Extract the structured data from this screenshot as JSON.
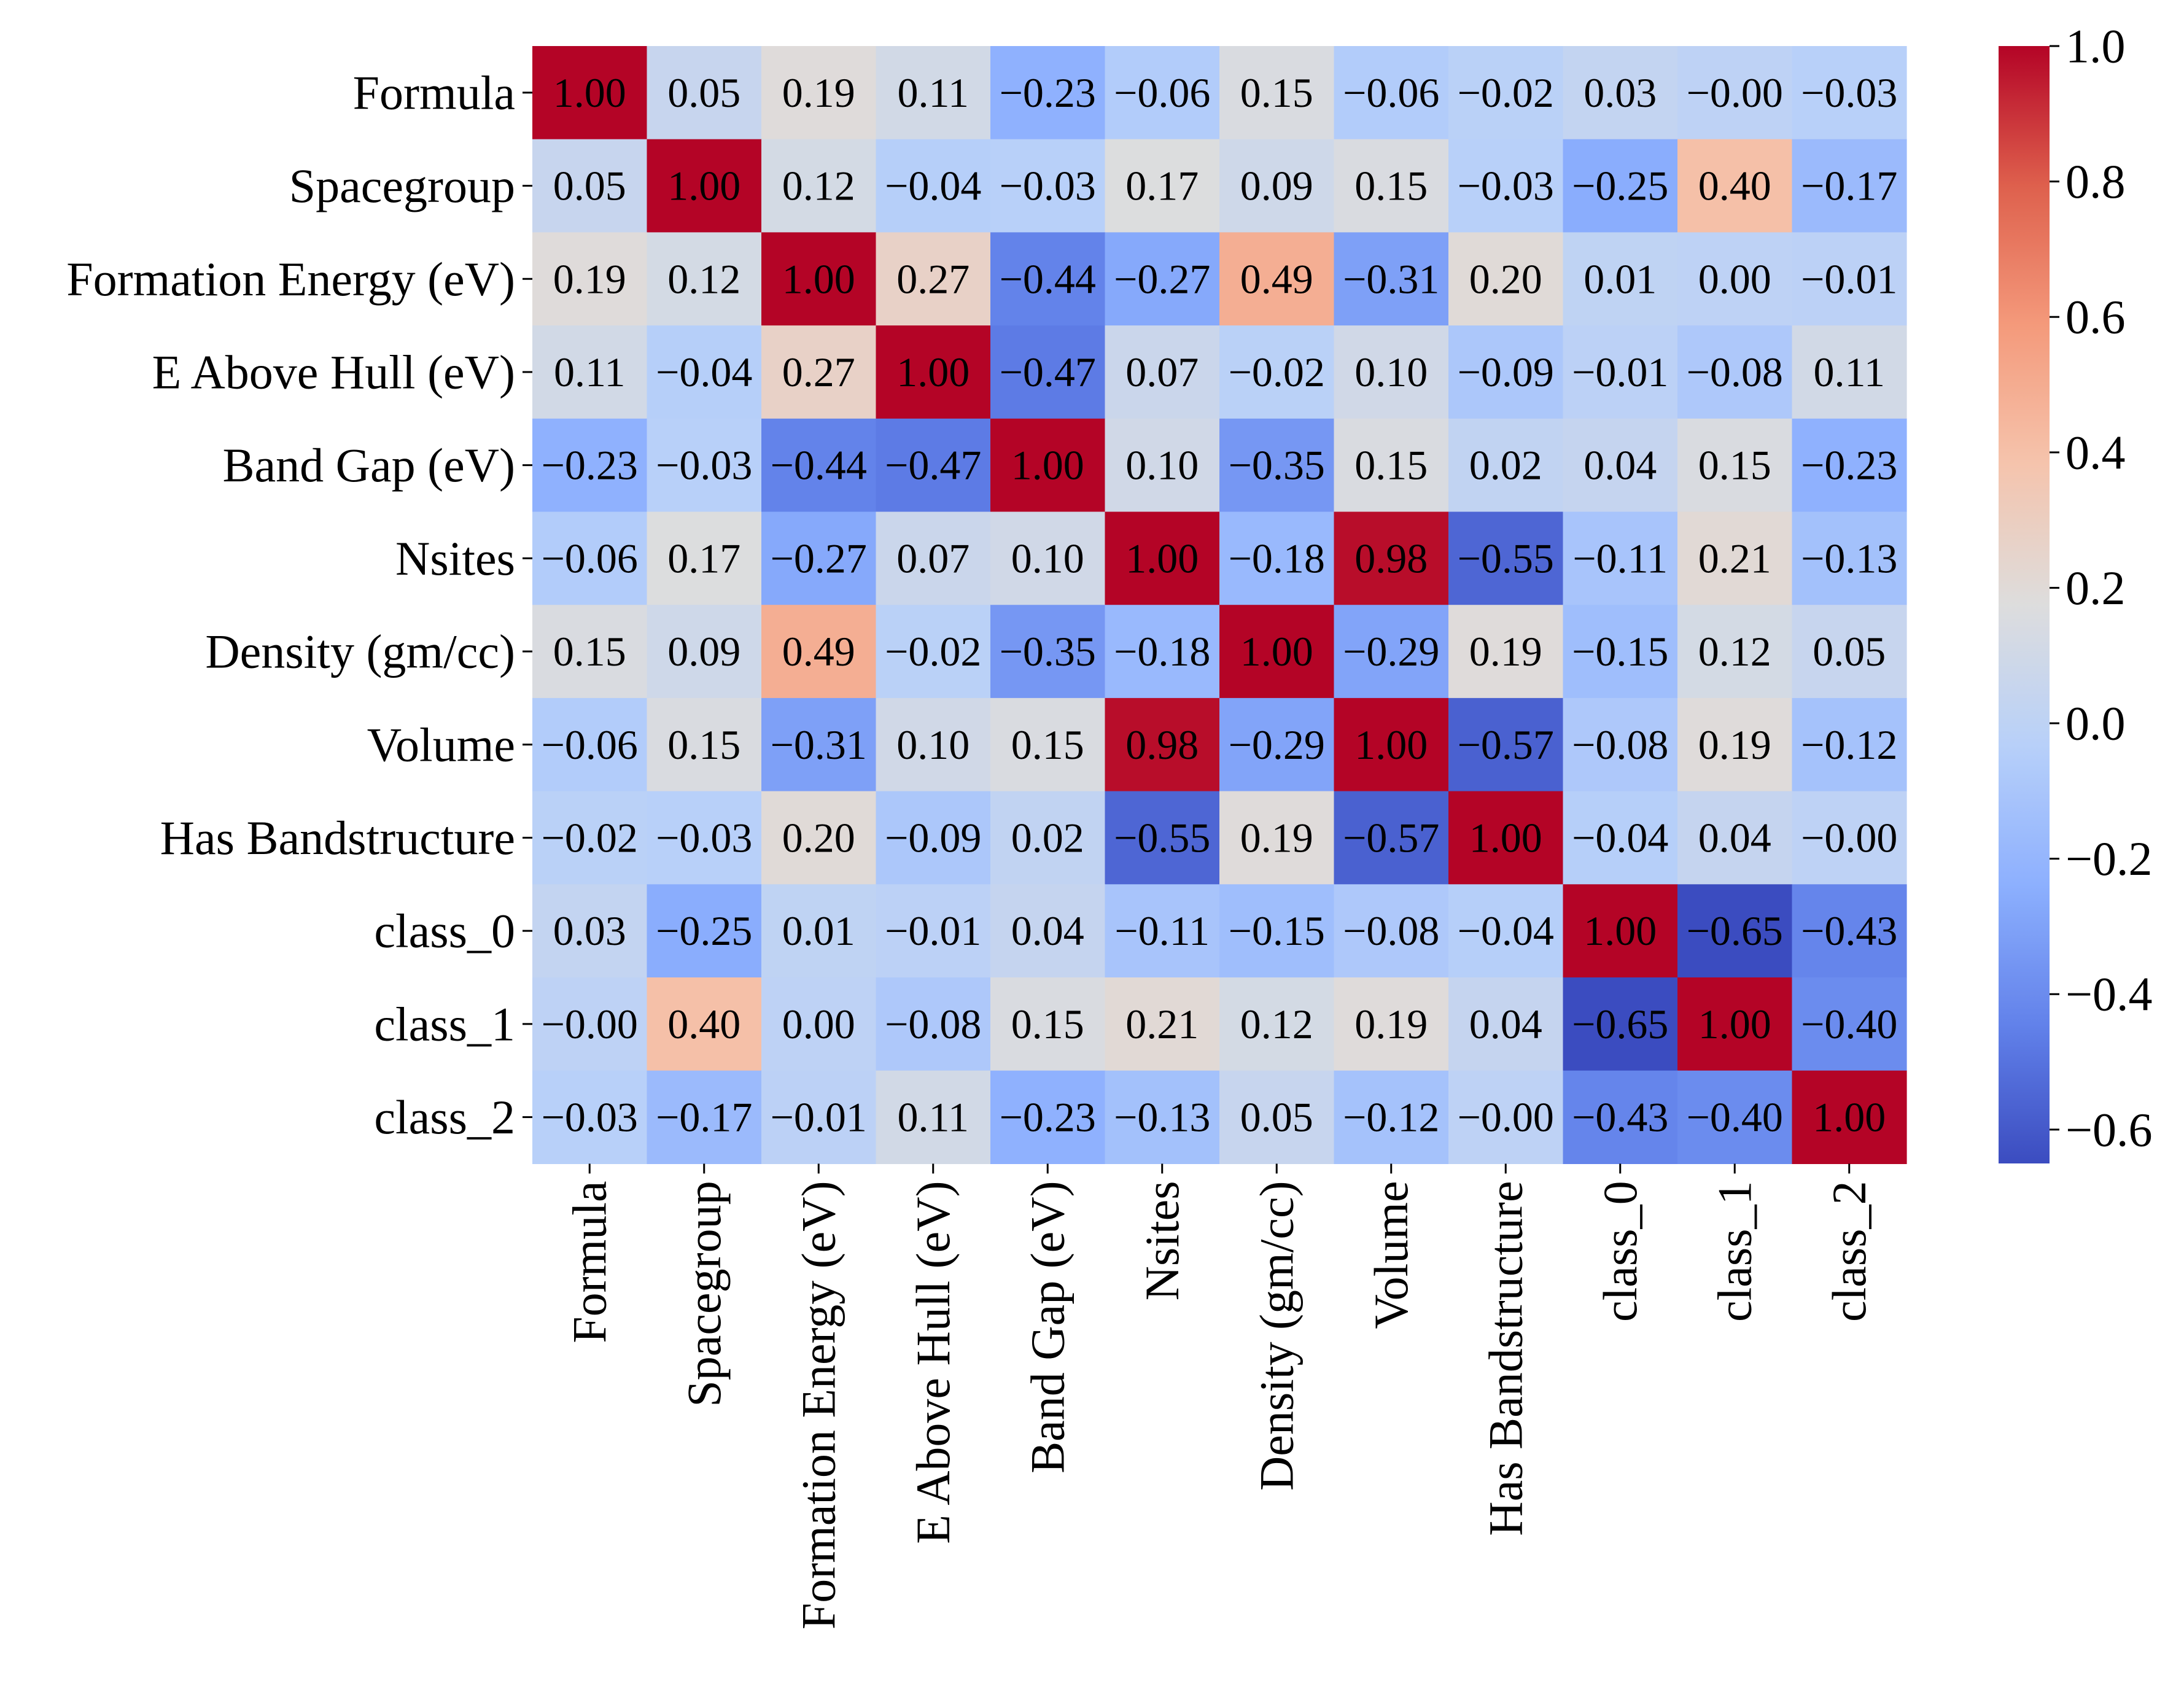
{
  "chart_data": {
    "type": "heatmap",
    "title": "",
    "xlabel": "",
    "ylabel": "",
    "labels": [
      "Formula",
      "Spacegroup",
      "Formation Energy (eV)",
      "E Above Hull (eV)",
      "Band Gap (eV)",
      "Nsites",
      "Density (gm/cc)",
      "Volume",
      "Has Bandstructure",
      "class_0",
      "class_1",
      "class_2"
    ],
    "matrix": [
      [
        1.0,
        0.05,
        0.19,
        0.11,
        -0.23,
        -0.06,
        0.15,
        -0.06,
        -0.02,
        0.03,
        -0.0,
        -0.03
      ],
      [
        0.05,
        1.0,
        0.12,
        -0.04,
        -0.03,
        0.17,
        0.09,
        0.15,
        -0.03,
        -0.25,
        0.4,
        -0.17
      ],
      [
        0.19,
        0.12,
        1.0,
        0.27,
        -0.44,
        -0.27,
        0.49,
        -0.31,
        0.2,
        0.01,
        0.0,
        -0.01
      ],
      [
        0.11,
        -0.04,
        0.27,
        1.0,
        -0.47,
        0.07,
        -0.02,
        0.1,
        -0.09,
        -0.01,
        -0.08,
        0.11
      ],
      [
        -0.23,
        -0.03,
        -0.44,
        -0.47,
        1.0,
        0.1,
        -0.35,
        0.15,
        0.02,
        0.04,
        0.15,
        -0.23
      ],
      [
        -0.06,
        0.17,
        -0.27,
        0.07,
        0.1,
        1.0,
        -0.18,
        0.98,
        -0.55,
        -0.11,
        0.21,
        -0.13
      ],
      [
        0.15,
        0.09,
        0.49,
        -0.02,
        -0.35,
        -0.18,
        1.0,
        -0.29,
        0.19,
        -0.15,
        0.12,
        0.05
      ],
      [
        -0.06,
        0.15,
        -0.31,
        0.1,
        0.15,
        0.98,
        -0.29,
        1.0,
        -0.57,
        -0.08,
        0.19,
        -0.12
      ],
      [
        -0.02,
        -0.03,
        0.2,
        -0.09,
        0.02,
        -0.55,
        0.19,
        -0.57,
        1.0,
        -0.04,
        0.04,
        -0.0
      ],
      [
        0.03,
        -0.25,
        0.01,
        -0.01,
        0.04,
        -0.11,
        -0.15,
        -0.08,
        -0.04,
        1.0,
        -0.65,
        -0.43
      ],
      [
        -0.0,
        0.4,
        0.0,
        -0.08,
        0.15,
        0.21,
        0.12,
        0.19,
        0.04,
        -0.65,
        1.0,
        -0.4
      ],
      [
        -0.03,
        -0.17,
        -0.01,
        0.11,
        -0.23,
        -0.13,
        0.05,
        -0.12,
        -0.0,
        -0.43,
        -0.4,
        1.0
      ]
    ],
    "cell_labels": [
      [
        "1.00",
        "0.05",
        "0.19",
        "0.11",
        "−0.23",
        "−0.06",
        "0.15",
        "−0.06",
        "−0.02",
        "0.03",
        "−0.00",
        "−0.03"
      ],
      [
        "0.05",
        "1.00",
        "0.12",
        "−0.04",
        "−0.03",
        "0.17",
        "0.09",
        "0.15",
        "−0.03",
        "−0.25",
        "0.40",
        "−0.17"
      ],
      [
        "0.19",
        "0.12",
        "1.00",
        "0.27",
        "−0.44",
        "−0.27",
        "0.49",
        "−0.31",
        "0.20",
        "0.01",
        "0.00",
        "−0.01"
      ],
      [
        "0.11",
        "−0.04",
        "0.27",
        "1.00",
        "−0.47",
        "0.07",
        "−0.02",
        "0.10",
        "−0.09",
        "−0.01",
        "−0.08",
        "0.11"
      ],
      [
        "−0.23",
        "−0.03",
        "−0.44",
        "−0.47",
        "1.00",
        "0.10",
        "−0.35",
        "0.15",
        "0.02",
        "0.04",
        "0.15",
        "−0.23"
      ],
      [
        "−0.06",
        "0.17",
        "−0.27",
        "0.07",
        "0.10",
        "1.00",
        "−0.18",
        "0.98",
        "−0.55",
        "−0.11",
        "0.21",
        "−0.13"
      ],
      [
        "0.15",
        "0.09",
        "0.49",
        "−0.02",
        "−0.35",
        "−0.18",
        "1.00",
        "−0.29",
        "0.19",
        "−0.15",
        "0.12",
        "0.05"
      ],
      [
        "−0.06",
        "0.15",
        "−0.31",
        "0.10",
        "0.15",
        "0.98",
        "−0.29",
        "1.00",
        "−0.57",
        "−0.08",
        "0.19",
        "−0.12"
      ],
      [
        "−0.02",
        "−0.03",
        "0.20",
        "−0.09",
        "0.02",
        "−0.55",
        "0.19",
        "−0.57",
        "1.00",
        "−0.04",
        "0.04",
        "−0.00"
      ],
      [
        "0.03",
        "−0.25",
        "0.01",
        "−0.01",
        "0.04",
        "−0.11",
        "−0.15",
        "−0.08",
        "−0.04",
        "1.00",
        "−0.65",
        "−0.43"
      ],
      [
        "−0.00",
        "0.40",
        "0.00",
        "−0.08",
        "0.15",
        "0.21",
        "0.12",
        "0.19",
        "0.04",
        "−0.65",
        "1.00",
        "−0.40"
      ],
      [
        "−0.03",
        "−0.17",
        "−0.01",
        "0.11",
        "−0.23",
        "−0.13",
        "0.05",
        "−0.12",
        "−0.00",
        "−0.43",
        "−0.40",
        "1.00"
      ]
    ],
    "colormap": "coolwarm",
    "vmin": -0.65,
    "vmax": 1.0,
    "colorbar": {
      "ticks": [
        1.0,
        0.8,
        0.6,
        0.4,
        0.2,
        0.0,
        -0.2,
        -0.4,
        -0.6
      ],
      "tick_labels": [
        "1.0",
        "0.8",
        "0.6",
        "0.4",
        "0.2",
        "0.0",
        "−0.2",
        "−0.4",
        "−0.6"
      ]
    },
    "colors": {
      "cold": "#3b4cc0",
      "neutral": "#dddddd",
      "warm": "#b40426",
      "text_dark": "#000000",
      "text_light": "#ffffff"
    }
  }
}
